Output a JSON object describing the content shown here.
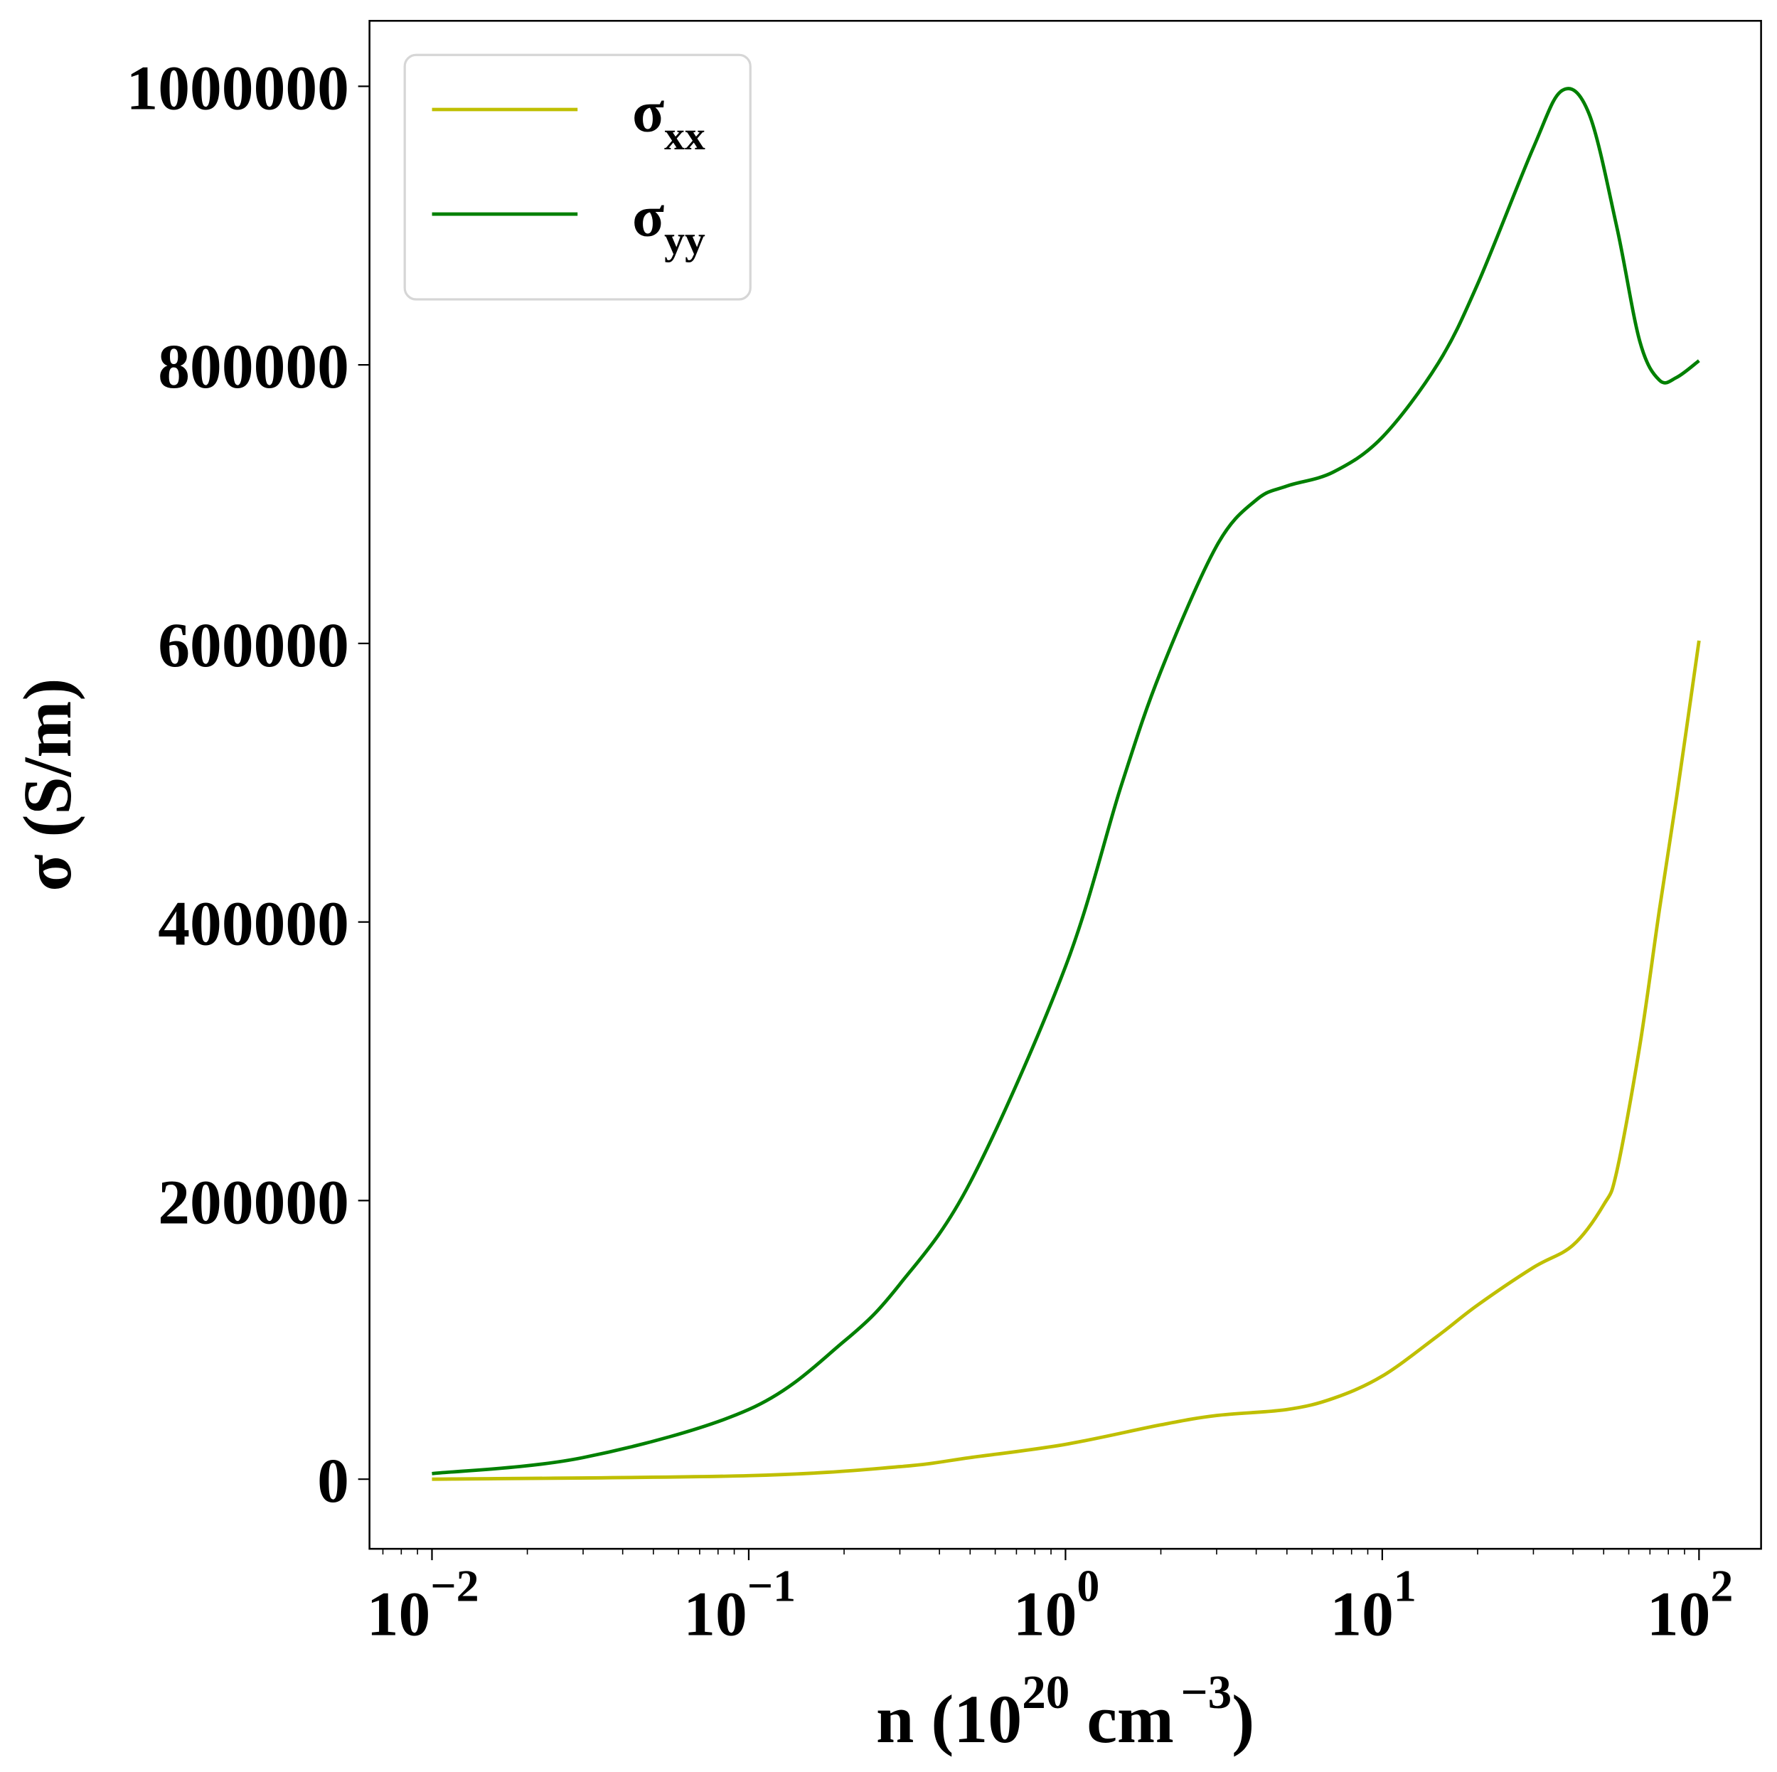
{
  "chart_data": {
    "type": "line",
    "xlabel": "n (10^20 cm^-3)",
    "xlabel_parts": {
      "base": "n (10",
      "exp1": "20",
      "mid": " cm",
      "exp2": "−3",
      "end": ")"
    },
    "ylabel": "σ (S/m)",
    "x_scale": "log",
    "xlim": [
      0.00635,
      157
    ],
    "ylim": [
      -50000,
      1047000
    ],
    "x_ticks": [
      {
        "value": 0.01,
        "base": "10",
        "exp": "−2"
      },
      {
        "value": 0.1,
        "base": "10",
        "exp": "−1"
      },
      {
        "value": 1,
        "base": "10",
        "exp": "0"
      },
      {
        "value": 10,
        "base": "10",
        "exp": "1"
      },
      {
        "value": 100,
        "base": "10",
        "exp": "2"
      }
    ],
    "y_ticks": [
      {
        "value": 0,
        "label": "0"
      },
      {
        "value": 200000,
        "label": "200000"
      },
      {
        "value": 400000,
        "label": "400000"
      },
      {
        "value": 600000,
        "label": "600000"
      },
      {
        "value": 800000,
        "label": "800000"
      },
      {
        "value": 1000000,
        "label": "1000000"
      }
    ],
    "grid": false,
    "legend_placement": "top-left",
    "series": [
      {
        "name": "σxx",
        "symbol": "σ",
        "subscript": "xx",
        "color": "#bfbf00",
        "x": [
          0.01,
          0.1,
          0.3,
          0.5,
          1,
          2,
          3,
          5,
          7,
          10,
          15,
          20,
          30,
          40,
          50,
          55,
          65,
          75,
          85,
          100
        ],
        "y": [
          0,
          2500,
          9000,
          15500,
          25000,
          39000,
          45700,
          50000,
          58000,
          74000,
          103000,
          125000,
          152000,
          168000,
          197000,
          221000,
          311000,
          409000,
          490000,
          602000
        ]
      },
      {
        "name": "σyy",
        "symbol": "σ",
        "subscript": "yy",
        "color": "#008000",
        "x": [
          0.01,
          0.03,
          0.1,
          0.2,
          0.3,
          0.5,
          1,
          1.5,
          2,
          3,
          4,
          5,
          7,
          10,
          15,
          20,
          30,
          37,
          45,
          55,
          65,
          75,
          85,
          100
        ],
        "y": [
          4000,
          15500,
          50000,
          99000,
          140000,
          213000,
          368000,
          498000,
          580000,
          670000,
          703000,
          713000,
          723000,
          748000,
          801000,
          858000,
          956000,
          997000,
          980000,
          899000,
          817000,
          789000,
          791000,
          803000
        ]
      }
    ]
  }
}
